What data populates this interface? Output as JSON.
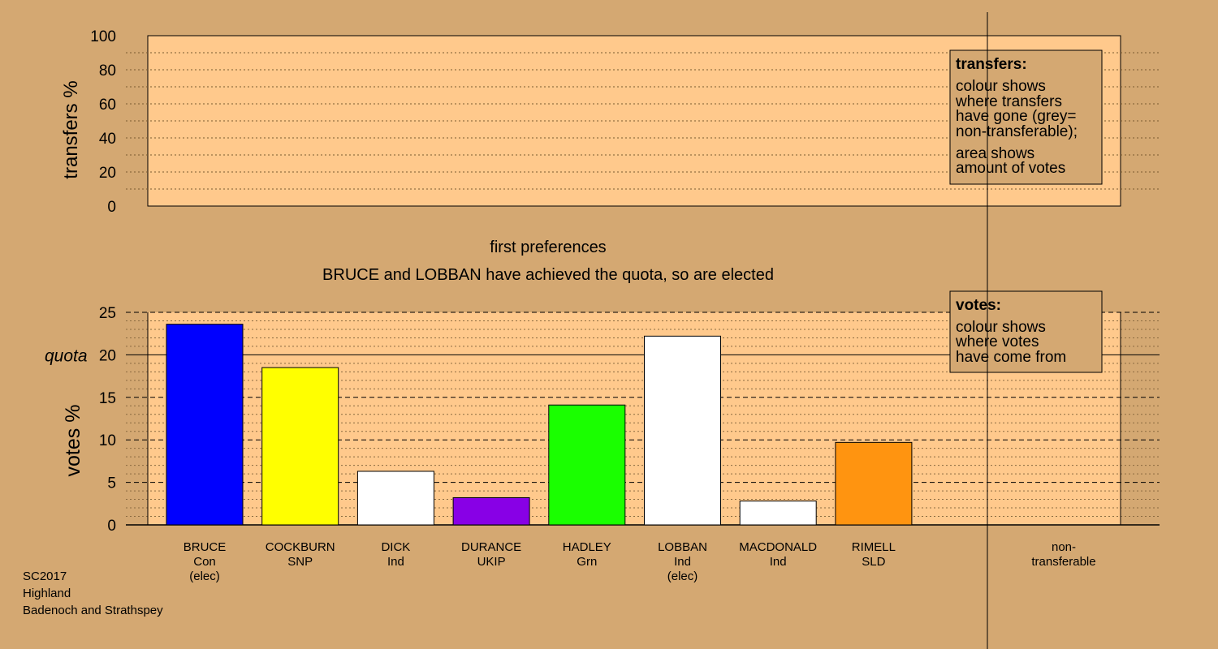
{
  "chart_data": [
    {
      "type": "bar",
      "panel": "transfers",
      "ylabel": "transfers %",
      "ylim": [
        0,
        100
      ],
      "yticks": [
        0,
        20,
        40,
        60,
        80,
        100
      ],
      "series": [],
      "legend": {
        "title": "transfers:",
        "lines": [
          "colour shows",
          "where transfers",
          "have gone (grey=",
          "non-transferable);"
        ],
        "lines2": [
          "area shows",
          "amount of votes"
        ]
      }
    },
    {
      "type": "bar",
      "panel": "votes",
      "title": "first preferences",
      "subtitle": "BRUCE and LOBBAN have achieved the quota, so are elected",
      "ylabel": "votes %",
      "ylim": [
        0,
        25
      ],
      "yticks": [
        0,
        5,
        10,
        15,
        20,
        25
      ],
      "quota": 20,
      "quota_label": "quota",
      "categories": [
        {
          "name": "BRUCE",
          "party": "Con",
          "note": "(elec)"
        },
        {
          "name": "COCKBURN",
          "party": "SNP",
          "note": ""
        },
        {
          "name": "DICK",
          "party": "Ind",
          "note": ""
        },
        {
          "name": "DURANCE",
          "party": "UKIP",
          "note": ""
        },
        {
          "name": "HADLEY",
          "party": "Grn",
          "note": ""
        },
        {
          "name": "LOBBAN",
          "party": "Ind",
          "note": "(elec)"
        },
        {
          "name": "MACDONALD",
          "party": "Ind",
          "note": ""
        },
        {
          "name": "RIMELL",
          "party": "SLD",
          "note": ""
        }
      ],
      "values": [
        23.6,
        18.5,
        6.3,
        3.2,
        14.1,
        22.2,
        2.8,
        9.7
      ],
      "colors": [
        "#0000ff",
        "#ffff00",
        "#ffffff",
        "#8800e6",
        "#1aff00",
        "#ffffff",
        "#ffffff",
        "#ff9410"
      ],
      "non_transferable_label": [
        "non-",
        "transferable"
      ],
      "legend": {
        "title": "votes:",
        "lines": [
          "colour shows",
          "where votes",
          "have come from"
        ]
      }
    }
  ],
  "colors": {
    "background": "#d4a872",
    "plot_fill": "#ffc98c"
  },
  "footer": {
    "line1": "SC2017",
    "line2": "Highland",
    "line3": "Badenoch and Strathspey"
  }
}
